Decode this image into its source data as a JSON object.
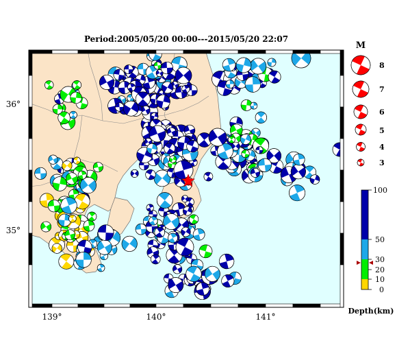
{
  "title": "Period:2005/05/20 00:00---2015/05/20 22:07",
  "colors": {
    "land": "#fbe4c7",
    "sea": "#e0ffff",
    "coast": "#6e6e6e",
    "frame": "#000000",
    "quake_red": "#ff0000",
    "depth_0_10": "#ffd700",
    "depth_10_30": "#00ee00",
    "depth_30_50": "#1ea8e8",
    "depth_50_100": "#0000aa"
  },
  "map": {
    "lon_labels": [
      "139°",
      "140°",
      "141°"
    ],
    "lat_labels": [
      "36°",
      "35°"
    ],
    "event_marker": "star"
  },
  "magnitude_legend": {
    "title": "M",
    "items": [
      "8",
      "7",
      "6",
      "5",
      "4",
      "3"
    ]
  },
  "depth_legend": {
    "title": "Depth(km)",
    "ticks": [
      "100",
      "50",
      "30",
      "20",
      "10",
      "0"
    ],
    "marker": "triangles"
  }
}
